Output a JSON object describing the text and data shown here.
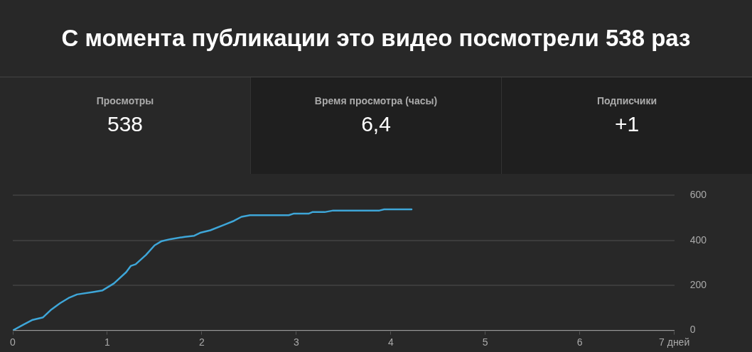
{
  "chart_data": [
    {
      "type": "other",
      "title": "С момента публикации это видео посмотрели 538 раз",
      "annotations": [
        "Просмотры",
        "538",
        "Время просмотра (часы)",
        "6,4",
        "Подписчики",
        "+1"
      ]
    },
    {
      "type": "line",
      "x": [
        0,
        0.11,
        0.21,
        0.32,
        0.4,
        0.5,
        0.59,
        0.68,
        0.85,
        0.95,
        1.07,
        1.2,
        1.25,
        1.3,
        1.41,
        1.5,
        1.57,
        1.67,
        1.82,
        1.92,
        1.99,
        2.09,
        2.24,
        2.34,
        2.42,
        2.51,
        2.92,
        2.97,
        3.13,
        3.17,
        3.3,
        3.39,
        3.88,
        3.93,
        4.22
      ],
      "series": [
        {
          "color": "#3ea6d8",
          "values": [
            0,
            25,
            47,
            58,
            90,
            121,
            144,
            160,
            171,
            178,
            209,
            259,
            287,
            294,
            336,
            378,
            396,
            406,
            416,
            421,
            435,
            445,
            470,
            487,
            505,
            512,
            512,
            519,
            519,
            526,
            526,
            533,
            533,
            538,
            538
          ]
        }
      ],
      "xlim": [
        0,
        7
      ],
      "xticks": [
        0,
        1,
        2,
        3,
        4,
        5,
        6,
        {
          "value": 7,
          "label": "7 дней"
        }
      ],
      "ylim": [
        0,
        600
      ],
      "yticks": [
        0,
        200,
        400,
        600
      ],
      "grid": "y",
      "marker": "none",
      "line_style": "solid",
      "legend": false
    }
  ]
}
